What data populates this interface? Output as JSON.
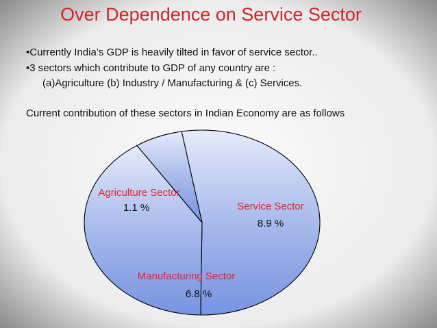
{
  "title": "Over Dependence on Service Sector",
  "bullets": [
    "•Currently India’s GDP is heavily tilted in favor of service sector..",
    "•3 sectors which contribute to GDP of any country are :",
    "(a)Agriculture (b) Industry / Manufacturing & (c) Services."
  ],
  "intro": "Current contribution of these sectors in Indian Economy are as follows",
  "chart_data": {
    "type": "pie",
    "categories": [
      "Service Sector",
      "Manufacturing Sector",
      "Agriculture Sector"
    ],
    "values": [
      8.9,
      6.8,
      1.1
    ],
    "value_labels": [
      "8.9 %",
      "6.8 %",
      "1.1 %"
    ],
    "color": "#c5d3f5",
    "label_color": "#d8272f"
  }
}
